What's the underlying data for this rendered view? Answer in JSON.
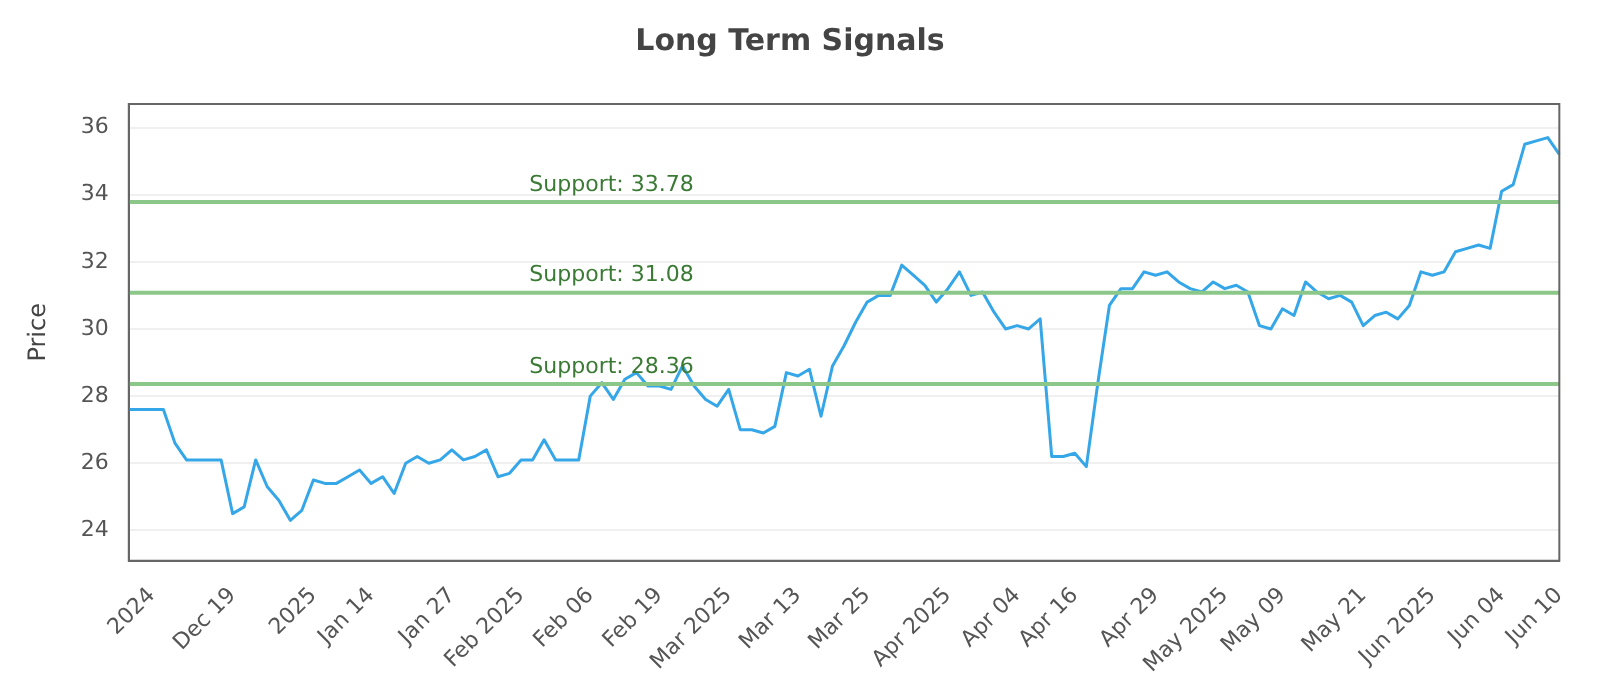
{
  "chart_data": {
    "type": "line",
    "title": "Long Term Signals",
    "ylabel": "Price",
    "categories": [
      null,
      null,
      "2024",
      null,
      null,
      null,
      null,
      null,
      null,
      "Dec 19",
      null,
      null,
      null,
      null,
      null,
      null,
      "2025",
      null,
      null,
      null,
      null,
      "Jan 14",
      null,
      null,
      null,
      null,
      null,
      null,
      "Jan 27",
      null,
      null,
      null,
      null,
      null,
      "Feb 2025",
      null,
      null,
      null,
      null,
      null,
      "Feb 06",
      null,
      null,
      null,
      null,
      null,
      "Feb 19",
      null,
      null,
      null,
      null,
      null,
      "Mar 2025",
      null,
      null,
      null,
      null,
      null,
      "Mar 13",
      null,
      null,
      null,
      null,
      null,
      "Mar 25",
      null,
      null,
      null,
      null,
      null,
      null,
      "Apr 2025",
      null,
      null,
      null,
      null,
      null,
      "Apr 04",
      null,
      null,
      null,
      null,
      "Apr 16",
      null,
      null,
      null,
      null,
      null,
      null,
      "Apr 29",
      null,
      null,
      null,
      null,
      null,
      "May 2025",
      null,
      null,
      null,
      null,
      "May 09",
      null,
      null,
      null,
      null,
      null,
      null,
      "May 21",
      null,
      null,
      null,
      null,
      null,
      "Jun 2025",
      null,
      null,
      null,
      null,
      null,
      "Jun 04",
      null,
      null,
      null,
      null,
      "Jun 10"
    ],
    "series": [
      {
        "color": "#35a7e8",
        "values": [
          27.6,
          27.6,
          27.6,
          27.6,
          26.6,
          26.1,
          26.1,
          26.1,
          26.1,
          24.5,
          24.7,
          26.1,
          25.3,
          24.9,
          24.3,
          24.6,
          25.5,
          25.4,
          25.4,
          25.6,
          25.8,
          25.4,
          25.6,
          25.1,
          26.0,
          26.2,
          26.0,
          26.1,
          26.4,
          26.1,
          26.2,
          26.4,
          25.6,
          25.7,
          26.1,
          26.1,
          26.7,
          26.1,
          26.1,
          26.1,
          28.0,
          28.4,
          27.9,
          28.5,
          28.7,
          28.3,
          28.3,
          28.2,
          28.9,
          28.3,
          27.9,
          27.7,
          28.2,
          27.0,
          27.0,
          26.9,
          27.1,
          28.7,
          28.6,
          28.8,
          27.4,
          28.9,
          29.5,
          30.2,
          30.8,
          31.0,
          31.0,
          31.9,
          31.6,
          31.3,
          30.8,
          31.2,
          31.7,
          31.0,
          31.1,
          30.5,
          30.0,
          30.1,
          30.0,
          30.3,
          26.2,
          26.2,
          26.3,
          25.9,
          28.4,
          30.7,
          31.2,
          31.2,
          31.7,
          31.6,
          31.7,
          31.4,
          31.2,
          31.1,
          31.4,
          31.2,
          31.3,
          31.1,
          30.1,
          30.0,
          30.6,
          30.4,
          31.4,
          31.1,
          30.9,
          31.0,
          30.8,
          30.1,
          30.4,
          30.5,
          30.3,
          30.7,
          31.7,
          31.6,
          31.7,
          32.3,
          32.4,
          32.5,
          32.4,
          34.1,
          34.3,
          35.5,
          35.6,
          35.7,
          35.2
        ]
      }
    ],
    "ylim": [
      23.1,
      36.7
    ],
    "yticks": [
      24,
      26,
      28,
      30,
      32,
      34,
      36
    ],
    "grid": "y",
    "legend": false,
    "marker": "none",
    "line_style": "solid",
    "ref_lines": [
      {
        "axis": "y",
        "value": 33.78,
        "label": "Support: 33.78",
        "color": "#8cc78a"
      },
      {
        "axis": "y",
        "value": 31.08,
        "label": "Support: 31.08",
        "color": "#8cc78a"
      },
      {
        "axis": "y",
        "value": 28.36,
        "label": "Support: 28.36",
        "color": "#8cc78a"
      }
    ]
  }
}
